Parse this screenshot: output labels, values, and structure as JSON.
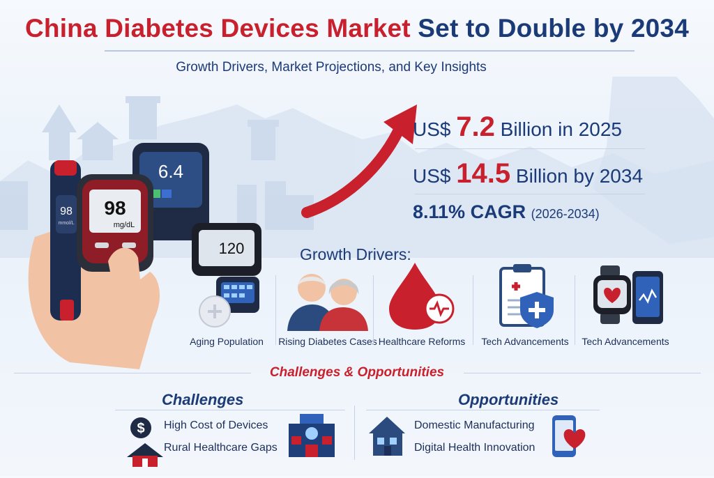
{
  "title": {
    "part1": "China Diabetes Devices Market",
    "part2": "Set to Double by 2034"
  },
  "subtitle": "Growth Drivers, Market Projections, and Key Insights",
  "stats": {
    "value_2025": {
      "prefix": "US$",
      "value": "7.2",
      "suffix": "Billion in 2025"
    },
    "value_2034": {
      "prefix": "US$",
      "value": "14.5",
      "suffix": "Billion by 2034"
    },
    "cagr": {
      "label": "8.11% CAGR",
      "years": "(2026-2034)"
    }
  },
  "devices": {
    "pen_display": "98",
    "pen_unit": "mmol/L",
    "meter_main_reading": "98",
    "meter_main_unit": "mg/dL",
    "meter_back_reading": "6.4",
    "monitor_reading": "120"
  },
  "growth_drivers": {
    "heading": "Growth Drivers:",
    "items": [
      {
        "label": "Aging Population",
        "icon": "glucose-meter-icon"
      },
      {
        "label": "Rising Diabetes Cases",
        "icon": "elderly-couple-icon"
      },
      {
        "label": "Healthcare Reforms",
        "icon": "blood-drop-icon"
      },
      {
        "label": "Tech Advancements",
        "icon": "medical-clipboard-icon"
      },
      {
        "label": "Tech Advancements",
        "icon": "smartwatch-tablet-icon"
      }
    ]
  },
  "challenges_opportunities": {
    "heading": "Challenges & Opportunities",
    "challenges": {
      "heading": "Challenges",
      "items": [
        "High Cost of Devices",
        "Rural Healthcare Gaps"
      ]
    },
    "opportunities": {
      "heading": "Opportunities",
      "items": [
        "Domestic Manufacturing",
        "Digital Health Innovation"
      ]
    }
  },
  "colors": {
    "accent_red": "#c8202c",
    "brand_blue": "#1b3a78",
    "background": "#eef4fb"
  }
}
